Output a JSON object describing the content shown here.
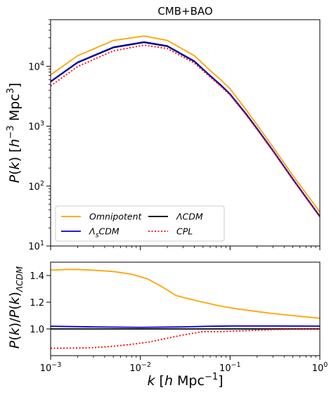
{
  "chart_data": [
    {
      "type": "line",
      "title": "CMB+BAO",
      "xlabel": "k [h Mpc^-1]",
      "ylabel": "P(k) [h^-3 Mpc^3]",
      "xscale": "log",
      "yscale": "log",
      "xlim": [
        0.001,
        1
      ],
      "ylim": [
        10,
        60000
      ],
      "legend_position": "lower-left",
      "legend_columns": 2,
      "x_ticks": [
        "10^-3",
        "10^-2",
        "10^-1",
        "10^0"
      ],
      "y_ticks": [
        "10^1",
        "10^2",
        "10^3",
        "10^4"
      ],
      "series": [
        {
          "name": "Omnipotent",
          "color": "#ffa500",
          "style": "solid",
          "x": [
            0.001,
            0.002,
            0.005,
            0.011,
            0.02,
            0.04,
            0.06,
            0.08,
            0.1,
            0.15,
            0.2,
            0.3,
            0.5,
            1.0
          ],
          "y": [
            7200,
            15000,
            27000,
            32000,
            27000,
            15000,
            8500,
            5800,
            4200,
            1900,
            1050,
            450,
            150,
            37
          ]
        },
        {
          "name": "ΛCDM",
          "color": "#000000",
          "style": "solid",
          "x": [
            0.001,
            0.002,
            0.005,
            0.011,
            0.02,
            0.04,
            0.06,
            0.08,
            0.1,
            0.15,
            0.2,
            0.3,
            0.5,
            1.0
          ],
          "y": [
            5500,
            11500,
            20500,
            25000,
            21500,
            12000,
            6900,
            4700,
            3400,
            1600,
            900,
            390,
            130,
            31
          ]
        },
        {
          "name": "Λ_sCDM",
          "color": "#0000cc",
          "style": "solid",
          "x": [
            0.001,
            0.002,
            0.005,
            0.011,
            0.02,
            0.04,
            0.06,
            0.08,
            0.1,
            0.15,
            0.2,
            0.3,
            0.5,
            1.0
          ],
          "y": [
            5600,
            11700,
            20900,
            25500,
            21900,
            12200,
            7000,
            4800,
            3450,
            1630,
            915,
            395,
            132,
            31.5
          ]
        },
        {
          "name": "CPL",
          "color": "#ff0000",
          "style": "dotted",
          "x": [
            0.001,
            0.002,
            0.005,
            0.011,
            0.02,
            0.04,
            0.06,
            0.08,
            0.1,
            0.15,
            0.2,
            0.3,
            0.5,
            1.0
          ],
          "y": [
            4700,
            9900,
            18100,
            22500,
            19800,
            11300,
            6600,
            4550,
            3300,
            1560,
            880,
            382,
            128,
            30.5
          ]
        }
      ]
    },
    {
      "type": "line",
      "xlabel": "k [h Mpc^-1]",
      "ylabel": "P(k)/P(k)_ΛCDM",
      "xscale": "log",
      "xlim": [
        0.001,
        1
      ],
      "ylim": [
        0.8,
        1.5
      ],
      "x_ticks": [
        "10^-3",
        "10^-2",
        "10^-1",
        "10^0"
      ],
      "y_ticks": [
        "1.0",
        "1.2",
        "1.4"
      ],
      "series": [
        {
          "name": "Omnipotent",
          "color": "#ffa500",
          "style": "solid",
          "x": [
            0.001,
            0.0015,
            0.002,
            0.003,
            0.005,
            0.008,
            0.012,
            0.018,
            0.025,
            0.035,
            0.05,
            0.08,
            0.12,
            0.2,
            0.3,
            0.5,
            1.0
          ],
          "y": [
            1.44,
            1.445,
            1.445,
            1.44,
            1.43,
            1.41,
            1.375,
            1.31,
            1.25,
            1.225,
            1.2,
            1.17,
            1.15,
            1.13,
            1.115,
            1.1,
            1.08
          ]
        },
        {
          "name": "Λ_sCDM",
          "color": "#0000cc",
          "style": "solid",
          "x": [
            0.001,
            0.003,
            0.01,
            0.03,
            0.06,
            0.1,
            0.3,
            1.0
          ],
          "y": [
            1.02,
            1.015,
            1.012,
            1.015,
            1.02,
            1.022,
            1.022,
            1.021
          ]
        },
        {
          "name": "ΛCDM",
          "color": "#000000",
          "style": "solid",
          "x": [
            0.001,
            1.0
          ],
          "y": [
            1.0,
            1.0
          ]
        },
        {
          "name": "CPL",
          "color": "#ff0000",
          "style": "dotted",
          "x": [
            0.001,
            0.002,
            0.003,
            0.005,
            0.008,
            0.012,
            0.02,
            0.03,
            0.05,
            0.08,
            0.12,
            0.2,
            0.3,
            0.5,
            1.0
          ],
          "y": [
            0.855,
            0.857,
            0.86,
            0.87,
            0.885,
            0.9,
            0.93,
            0.955,
            0.98,
            0.98,
            0.985,
            0.99,
            0.995,
            0.998,
            1.0
          ]
        }
      ]
    }
  ],
  "legend": [
    {
      "label": "Omnipotent",
      "color": "#ffa500",
      "style": "solid"
    },
    {
      "label": "ΛCDM",
      "color": "#000000",
      "style": "solid"
    },
    {
      "label": "Λ_sCDM",
      "color": "#0000cc",
      "style": "solid"
    },
    {
      "label": "CPL",
      "color": "#ff0000",
      "style": "dotted"
    }
  ]
}
